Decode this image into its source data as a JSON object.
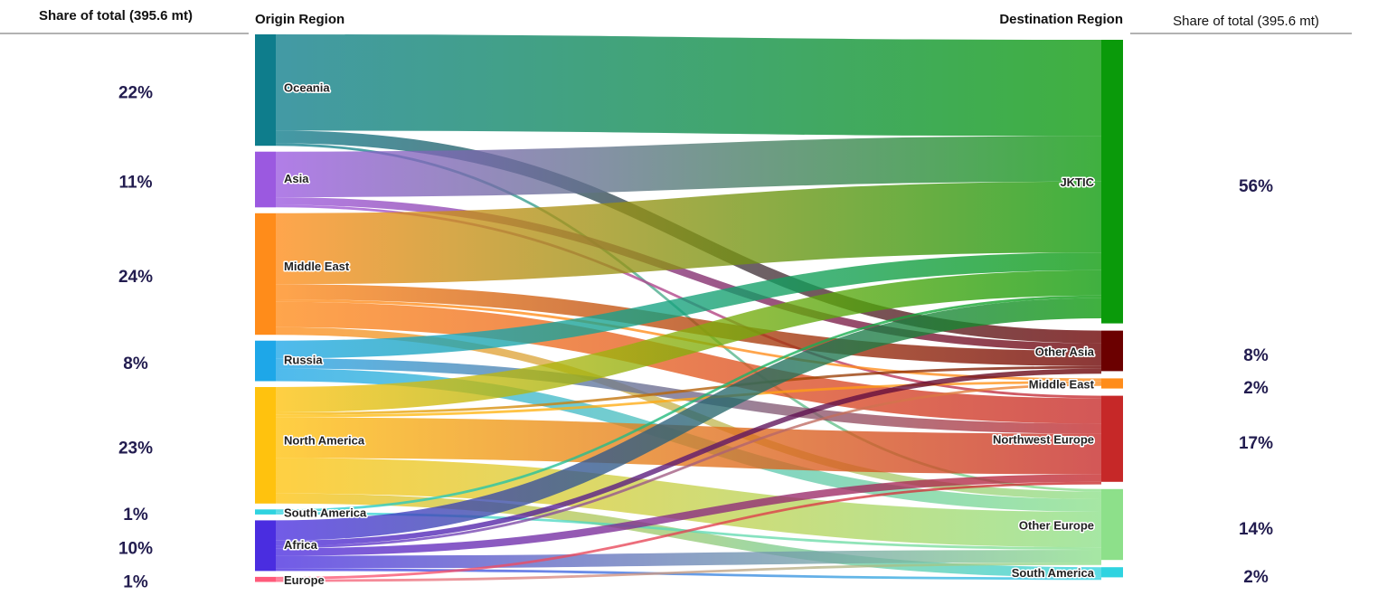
{
  "chart_data": {
    "type": "sankey",
    "left_header": "Share of total (395.6 mt)",
    "left_title": "Origin Region",
    "right_title": "Destination Region",
    "right_header": "Share of total (395.6 mt)",
    "sources": {
      "names": [
        "Oceania",
        "Asia",
        "Middle East",
        "Russia",
        "North America",
        "South America",
        "Africa",
        "Europe"
      ],
      "values": [
        22,
        11,
        24,
        8,
        23,
        1,
        10,
        1
      ],
      "value_labels": [
        "22%",
        "11%",
        "24%",
        "8%",
        "23%",
        "1%",
        "10%",
        "1%"
      ],
      "colors": [
        "#0e7d8c",
        "#9b59e0",
        "#ff8c1a",
        "#1ea7e8",
        "#ffc20e",
        "#2fd3e0",
        "#4a2de0",
        "#ff5a7a"
      ]
    },
    "targets": {
      "names": [
        "JKTIC",
        "Other Asia",
        "Middle East",
        "Northwest Europe",
        "Other Europe",
        "South America"
      ],
      "values": [
        56,
        8,
        2,
        17,
        14,
        2
      ],
      "value_labels": [
        "56%",
        "8%",
        "2%",
        "17%",
        "14%",
        "2%"
      ],
      "colors": [
        "#0a9a0a",
        "#6b0000",
        "#ff8c1a",
        "#c62828",
        "#8de08a",
        "#2fd3e0"
      ]
    },
    "flows": [
      [
        19,
        2.5,
        0,
        0,
        0.5,
        0
      ],
      [
        9,
        1.5,
        0,
        0.5,
        0,
        0
      ],
      [
        14,
        3,
        0.5,
        5,
        1.5,
        0
      ],
      [
        3.5,
        0,
        0,
        2,
        2.5,
        0
      ],
      [
        5,
        0.5,
        0.5,
        8,
        7,
        2
      ],
      [
        0.5,
        0,
        0,
        0,
        0.5,
        0
      ],
      [
        4,
        1,
        0.5,
        1.5,
        2.5,
        0.5
      ],
      [
        0,
        0,
        0,
        0.5,
        0.5,
        0
      ]
    ]
  }
}
